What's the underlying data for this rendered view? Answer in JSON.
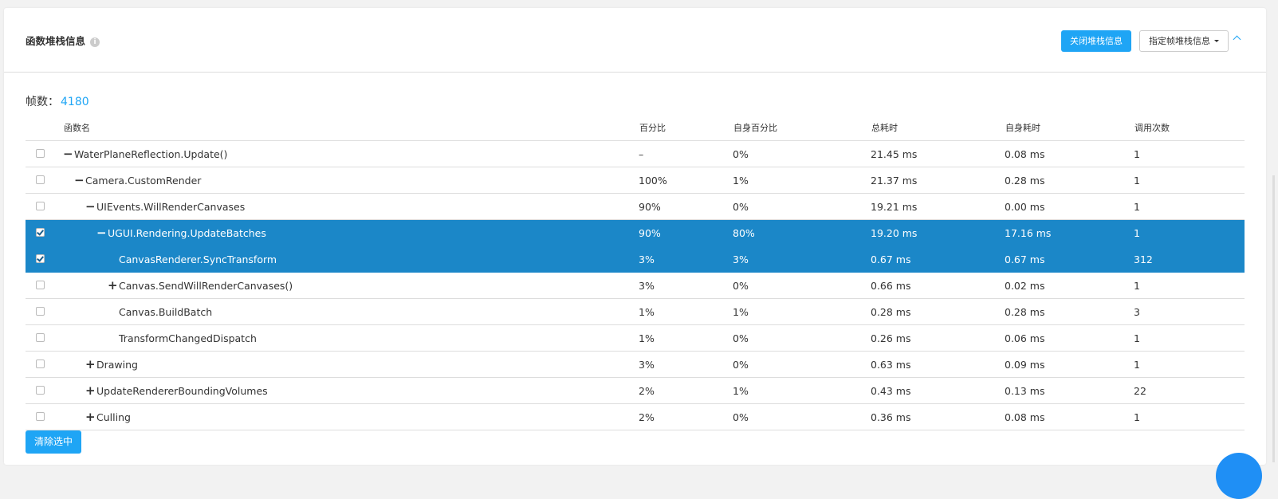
{
  "header": {
    "title": "函数堆栈信息",
    "buttons": [
      "关闭堆栈信息",
      "指定帧堆栈信息"
    ]
  },
  "frame": {
    "label": "帧数：",
    "value": 4180
  },
  "table": {
    "columns": [
      "函数名",
      "百分比",
      "自身百分比",
      "总耗时",
      "自身耗时",
      "调用次数"
    ],
    "rows": [
      {
        "toggle": "−",
        "name": "WaterPlaneReflection.Update()",
        "cells": [
          "–",
          "0%",
          "21.45 ms",
          "0.08 ms",
          1
        ],
        "checked": false
      },
      {
        "toggle": "−",
        "name": "Camera.CustomRender",
        "cells": [
          "100%",
          "1%",
          "21.37 ms",
          "0.28 ms",
          1
        ],
        "checked": false
      },
      {
        "toggle": "−",
        "name": "UIEvents.WillRenderCanvases",
        "cells": [
          "90%",
          "0%",
          "19.21 ms",
          "0.00 ms",
          1
        ],
        "checked": false
      },
      {
        "toggle": "−",
        "name": "UGUI.Rendering.UpdateBatches",
        "cells": [
          "90%",
          "80%",
          "19.20 ms",
          "17.16 ms",
          1
        ],
        "checked": true
      },
      {
        "name": "CanvasRenderer.SyncTransform",
        "cells": [
          "3%",
          "3%",
          "0.67 ms",
          "0.67 ms",
          312
        ],
        "checked": true
      },
      {
        "toggle": "+",
        "name": "Canvas.SendWillRenderCanvases()",
        "cells": [
          "3%",
          "0%",
          "0.66 ms",
          "0.02 ms",
          1
        ],
        "checked": false
      },
      {
        "name": "Canvas.BuildBatch",
        "cells": [
          "1%",
          "1%",
          "0.28 ms",
          "0.28 ms",
          3
        ],
        "checked": false
      },
      {
        "name": "TransformChangedDispatch",
        "cells": [
          "1%",
          "0%",
          "0.26 ms",
          "0.06 ms",
          1
        ],
        "checked": false
      },
      {
        "toggle": "+",
        "name": "Drawing",
        "cells": [
          "3%",
          "0%",
          "0.63 ms",
          "0.09 ms",
          1
        ],
        "checked": false
      },
      {
        "toggle": "+",
        "name": "UpdateRendererBoundingVolumes",
        "cells": [
          "2%",
          "1%",
          "0.43 ms",
          "0.13 ms",
          22
        ],
        "checked": false
      },
      {
        "toggle": "+",
        "name": "Culling",
        "cells": [
          "2%",
          "0%",
          "0.36 ms",
          "0.08 ms",
          1
        ],
        "checked": false
      }
    ]
  },
  "footer": {
    "button": "清除选中"
  }
}
